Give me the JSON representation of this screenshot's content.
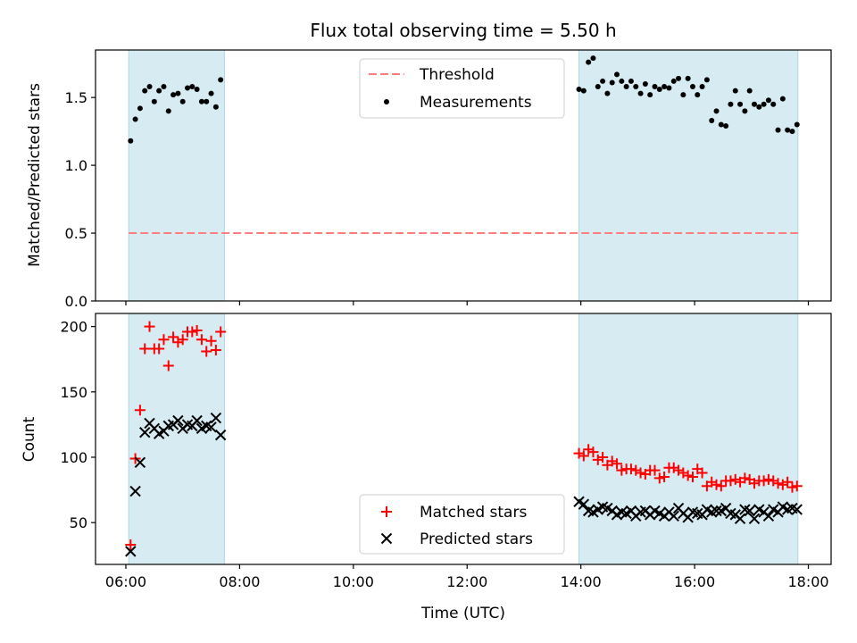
{
  "colors": {
    "shade": "#add8e6",
    "threshold": "#ff7f7f",
    "measurements": "#000000",
    "matched": "#ff0000",
    "predicted": "#000000"
  },
  "chart_data": [
    {
      "type": "scatter",
      "title": "Flux total observing time = 5.50 h",
      "xlabel": "",
      "ylabel": "Matched/Predicted stars",
      "xlim": [
        "05:28",
        "18:24"
      ],
      "ylim": [
        0,
        1.85
      ],
      "yticks": [
        0.0,
        0.5,
        1.0,
        1.5
      ],
      "ytick_labels": [
        "0.0",
        "0.5",
        "1.0",
        "1.5"
      ],
      "grid": false,
      "legend_position": "top-center",
      "shaded_intervals": [
        [
          "06:03",
          "07:44"
        ],
        [
          "13:58",
          "17:49"
        ]
      ],
      "threshold": {
        "name": "Threshold",
        "value": 0.5,
        "x_start": "06:03",
        "x_end": "17:49"
      },
      "series": [
        {
          "name": "Measurements",
          "x": [
            "06:05",
            "06:10",
            "06:15",
            "06:20",
            "06:25",
            "06:30",
            "06:35",
            "06:40",
            "06:45",
            "06:50",
            "06:55",
            "07:00",
            "07:05",
            "07:10",
            "07:15",
            "07:20",
            "07:25",
            "07:30",
            "07:35",
            "07:40",
            "13:58",
            "14:03",
            "14:08",
            "14:13",
            "14:18",
            "14:23",
            "14:28",
            "14:33",
            "14:38",
            "14:43",
            "14:48",
            "14:53",
            "14:58",
            "15:03",
            "15:08",
            "15:13",
            "15:18",
            "15:23",
            "15:28",
            "15:33",
            "15:38",
            "15:43",
            "15:48",
            "15:53",
            "15:58",
            "16:03",
            "16:08",
            "16:13",
            "16:18",
            "16:23",
            "16:28",
            "16:33",
            "16:38",
            "16:43",
            "16:48",
            "16:53",
            "16:58",
            "17:03",
            "17:08",
            "17:13",
            "17:18",
            "17:23",
            "17:28",
            "17:33",
            "17:38",
            "17:43",
            "17:48"
          ],
          "y": [
            1.18,
            1.34,
            1.42,
            1.55,
            1.58,
            1.47,
            1.55,
            1.58,
            1.4,
            1.52,
            1.53,
            1.47,
            1.57,
            1.58,
            1.56,
            1.47,
            1.47,
            1.53,
            1.43,
            1.63,
            1.56,
            1.55,
            1.76,
            1.79,
            1.58,
            1.62,
            1.53,
            1.61,
            1.67,
            1.62,
            1.58,
            1.62,
            1.58,
            1.53,
            1.6,
            1.52,
            1.58,
            1.56,
            1.58,
            1.57,
            1.62,
            1.64,
            1.52,
            1.64,
            1.58,
            1.52,
            1.58,
            1.63,
            1.33,
            1.4,
            1.3,
            1.29,
            1.45,
            1.55,
            1.45,
            1.4,
            1.55,
            1.45,
            1.43,
            1.45,
            1.48,
            1.45,
            1.26,
            1.49,
            1.26,
            1.25,
            1.3
          ]
        }
      ]
    },
    {
      "type": "scatter",
      "title": "",
      "xlabel": "Time (UTC)",
      "ylabel": "Count",
      "xlim": [
        "05:28",
        "18:24"
      ],
      "ylim": [
        18,
        210
      ],
      "xticks": [
        "06:00",
        "08:00",
        "10:00",
        "12:00",
        "14:00",
        "16:00",
        "18:00"
      ],
      "yticks": [
        50,
        100,
        150,
        200
      ],
      "ytick_labels": [
        "50",
        "100",
        "150",
        "200"
      ],
      "grid": false,
      "legend_position": "bottom-center",
      "shaded_intervals": [
        [
          "06:03",
          "07:44"
        ],
        [
          "13:58",
          "17:49"
        ]
      ],
      "series": [
        {
          "name": "Matched stars",
          "marker": "plus",
          "x": [
            "06:05",
            "06:10",
            "06:15",
            "06:20",
            "06:25",
            "06:30",
            "06:35",
            "06:40",
            "06:45",
            "06:50",
            "06:55",
            "07:00",
            "07:05",
            "07:10",
            "07:15",
            "07:20",
            "07:25",
            "07:30",
            "07:35",
            "07:40",
            "13:58",
            "14:03",
            "14:08",
            "14:13",
            "14:18",
            "14:23",
            "14:28",
            "14:33",
            "14:38",
            "14:43",
            "14:48",
            "14:53",
            "14:58",
            "15:03",
            "15:08",
            "15:13",
            "15:18",
            "15:23",
            "15:28",
            "15:33",
            "15:38",
            "15:43",
            "15:48",
            "15:53",
            "15:58",
            "16:03",
            "16:08",
            "16:13",
            "16:18",
            "16:23",
            "16:28",
            "16:33",
            "16:38",
            "16:43",
            "16:48",
            "16:53",
            "16:58",
            "17:03",
            "17:08",
            "17:13",
            "17:18",
            "17:23",
            "17:28",
            "17:33",
            "17:38",
            "17:43",
            "17:48"
          ],
          "y": [
            33,
            99,
            136,
            183,
            200,
            183,
            183,
            190,
            170,
            192,
            188,
            190,
            196,
            196,
            197,
            190,
            181,
            189,
            182,
            196,
            103,
            101,
            106,
            104,
            98,
            100,
            94,
            97,
            95,
            90,
            91,
            91,
            90,
            88,
            87,
            90,
            90,
            84,
            85,
            92,
            92,
            90,
            88,
            86,
            85,
            91,
            88,
            78,
            81,
            79,
            78,
            82,
            82,
            83,
            81,
            84,
            83,
            80,
            82,
            82,
            83,
            82,
            80,
            79,
            81,
            77,
            78
          ]
        },
        {
          "name": "Predicted stars",
          "marker": "x",
          "x": [
            "06:05",
            "06:10",
            "06:15",
            "06:20",
            "06:25",
            "06:30",
            "06:35",
            "06:40",
            "06:45",
            "06:50",
            "06:55",
            "07:00",
            "07:05",
            "07:10",
            "07:15",
            "07:20",
            "07:25",
            "07:30",
            "07:35",
            "07:40",
            "13:58",
            "14:03",
            "14:08",
            "14:13",
            "14:18",
            "14:23",
            "14:28",
            "14:33",
            "14:38",
            "14:43",
            "14:48",
            "14:53",
            "14:58",
            "15:03",
            "15:08",
            "15:13",
            "15:18",
            "15:23",
            "15:28",
            "15:33",
            "15:38",
            "15:43",
            "15:48",
            "15:53",
            "15:58",
            "16:03",
            "16:08",
            "16:13",
            "16:18",
            "16:23",
            "16:28",
            "16:33",
            "16:38",
            "16:43",
            "16:48",
            "16:53",
            "16:58",
            "17:03",
            "17:08",
            "17:13",
            "17:18",
            "17:23",
            "17:28",
            "17:33",
            "17:38",
            "17:43",
            "17:48"
          ],
          "y": [
            28,
            74,
            96,
            119,
            126,
            122,
            118,
            120,
            124,
            125,
            128,
            122,
            125,
            124,
            128,
            122,
            124,
            123,
            130,
            117,
            66,
            64,
            59,
            58,
            60,
            62,
            61,
            59,
            56,
            58,
            57,
            59,
            55,
            58,
            59,
            56,
            59,
            57,
            55,
            58,
            55,
            61,
            57,
            54,
            58,
            57,
            56,
            60,
            58,
            59,
            59,
            61,
            57,
            56,
            53,
            60,
            59,
            53,
            60,
            58,
            55,
            60,
            58,
            62,
            60,
            61,
            60
          ]
        }
      ]
    }
  ]
}
